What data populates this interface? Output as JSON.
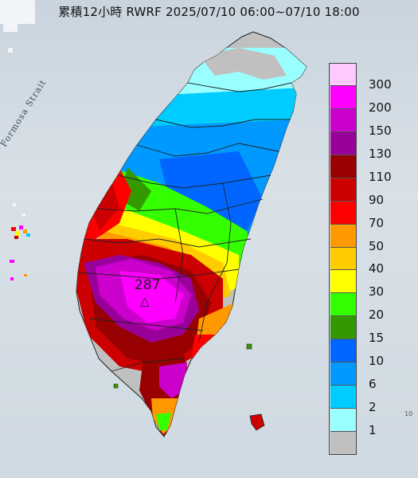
{
  "title": "累積12小時 RWRF 2025/07/10 06:00~07/10 18:00",
  "labels": {
    "strait": "Formosa Strait",
    "peak_value": "287",
    "peak_marker": "△",
    "edge_tick": "10"
  },
  "legend": {
    "items": [
      {
        "label": "300",
        "color": "#ffc8ff"
      },
      {
        "label": "200",
        "color": "#ff00ff"
      },
      {
        "label": "150",
        "color": "#cc00cc"
      },
      {
        "label": "130",
        "color": "#99009a"
      },
      {
        "label": "110",
        "color": "#990000"
      },
      {
        "label": "90",
        "color": "#cc0000"
      },
      {
        "label": "70",
        "color": "#ff0000"
      },
      {
        "label": "50",
        "color": "#ff9900"
      },
      {
        "label": "40",
        "color": "#ffcc00"
      },
      {
        "label": "30",
        "color": "#ffff00"
      },
      {
        "label": "20",
        "color": "#33ff00"
      },
      {
        "label": "15",
        "color": "#339900"
      },
      {
        "label": "10",
        "color": "#0066ff"
      },
      {
        "label": "6",
        "color": "#0099ff"
      },
      {
        "label": "2",
        "color": "#00ccff"
      },
      {
        "label": "1",
        "color": "#99ffff"
      },
      {
        "label": "",
        "color": "#c0c0c0"
      }
    ]
  },
  "colors": {
    "sea": "#d3dce4",
    "land_none": "#bdbdbd",
    "county_lines": "#2a2a2a"
  }
}
